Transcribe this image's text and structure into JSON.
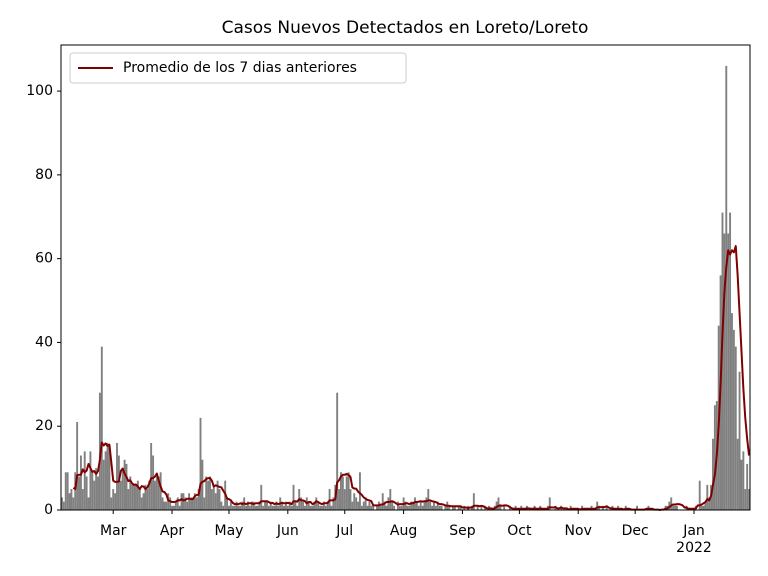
{
  "chart_data": {
    "type": "bar",
    "title": "Casos Nuevos Detectados en Loreto/Loreto",
    "xlim": [
      -0.5,
      362.5
    ],
    "xticks": [
      {
        "value": 27,
        "label": "Mar"
      },
      {
        "value": 58,
        "label": "Apr"
      },
      {
        "value": 88,
        "label": "May"
      },
      {
        "value": 119,
        "label": "Jun"
      },
      {
        "value": 149,
        "label": "Jul"
      },
      {
        "value": 180,
        "label": "Aug"
      },
      {
        "value": 211,
        "label": "Sep"
      },
      {
        "value": 241,
        "label": "Oct"
      },
      {
        "value": 272,
        "label": "Nov"
      },
      {
        "value": 302,
        "label": "Dec"
      },
      {
        "value": 333,
        "label": "Jan\n2022"
      }
    ],
    "ylim": [
      0,
      111
    ],
    "yticks": [
      0,
      20,
      40,
      60,
      80,
      100
    ],
    "legend": "upper left",
    "x": [
      0,
      1,
      2,
      3,
      4,
      5,
      6,
      7,
      8,
      9,
      10,
      11,
      12,
      13,
      14,
      15,
      16,
      17,
      18,
      19,
      20,
      21,
      22,
      23,
      24,
      25,
      26,
      27,
      28,
      29,
      30,
      31,
      32,
      33,
      34,
      35,
      36,
      37,
      38,
      39,
      40,
      41,
      42,
      43,
      44,
      45,
      46,
      47,
      48,
      49,
      50,
      51,
      52,
      53,
      54,
      55,
      56,
      57,
      58,
      59,
      60,
      61,
      62,
      63,
      64,
      65,
      66,
      67,
      68,
      69,
      70,
      71,
      72,
      73,
      74,
      75,
      76,
      77,
      78,
      79,
      80,
      81,
      82,
      83,
      84,
      85,
      86,
      87,
      88,
      89,
      90,
      91,
      92,
      93,
      94,
      95,
      96,
      97,
      98,
      99,
      100,
      101,
      102,
      103,
      104,
      105,
      106,
      107,
      108,
      109,
      110,
      111,
      112,
      113,
      114,
      115,
      116,
      117,
      118,
      119,
      120,
      121,
      122,
      123,
      124,
      125,
      126,
      127,
      128,
      129,
      130,
      131,
      132,
      133,
      134,
      135,
      136,
      137,
      138,
      139,
      140,
      141,
      142,
      143,
      144,
      145,
      146,
      147,
      148,
      149,
      150,
      151,
      152,
      153,
      154,
      155,
      156,
      157,
      158,
      159,
      160,
      161,
      162,
      163,
      164,
      165,
      166,
      167,
      168,
      169,
      170,
      171,
      172,
      173,
      174,
      175,
      176,
      177,
      178,
      179,
      180,
      181,
      182,
      183,
      184,
      185,
      186,
      187,
      188,
      189,
      190,
      191,
      192,
      193,
      194,
      195,
      196,
      197,
      198,
      199,
      200,
      201,
      202,
      203,
      204,
      205,
      206,
      207,
      208,
      209,
      210,
      211,
      212,
      213,
      214,
      215,
      216,
      217,
      218,
      219,
      220,
      221,
      222,
      223,
      224,
      225,
      226,
      227,
      228,
      229,
      230,
      231,
      232,
      233,
      234,
      235,
      236,
      237,
      238,
      239,
      240,
      241,
      242,
      243,
      244,
      245,
      246,
      247,
      248,
      249,
      250,
      251,
      252,
      253,
      254,
      255,
      256,
      257,
      258,
      259,
      260,
      261,
      262,
      263,
      264,
      265,
      266,
      267,
      268,
      269,
      270,
      271,
      272,
      273,
      274,
      275,
      276,
      277,
      278,
      279,
      280,
      281,
      282,
      283,
      284,
      285,
      286,
      287,
      288,
      289,
      290,
      291,
      292,
      293,
      294,
      295,
      296,
      297,
      298,
      299,
      300,
      301,
      302,
      303,
      304,
      305,
      306,
      307,
      308,
      309,
      310,
      311,
      312,
      313,
      314,
      315,
      316,
      317,
      318,
      319,
      320,
      321,
      322,
      323,
      324,
      325,
      326,
      327,
      328,
      329,
      330,
      331,
      332,
      333,
      334,
      335,
      336,
      337,
      338,
      339,
      340,
      341,
      342,
      343,
      344,
      345,
      346,
      347,
      348,
      349,
      350,
      351,
      352,
      353,
      354,
      355,
      356,
      357,
      358,
      359,
      360,
      361,
      362
    ],
    "bars": {
      "color": "#808080",
      "values": [
        3,
        2,
        9,
        9,
        4,
        5,
        3,
        9,
        21,
        8,
        13,
        5,
        14,
        8,
        3,
        14,
        9,
        7,
        10,
        8,
        28,
        39,
        12,
        14,
        16,
        15,
        3,
        5,
        4,
        16,
        13,
        7,
        10,
        12,
        11,
        5,
        8,
        6,
        6,
        6,
        7,
        5,
        3,
        4,
        6,
        5,
        7,
        16,
        13,
        7,
        8,
        8,
        9,
        3,
        2,
        2,
        4,
        3,
        1,
        1,
        2,
        3,
        1,
        4,
        4,
        3,
        2,
        4,
        3,
        3,
        4,
        3,
        5,
        22,
        12,
        3,
        8,
        7,
        8,
        5,
        6,
        4,
        7,
        5,
        2,
        1,
        7,
        3,
        1,
        2,
        1,
        1,
        2,
        1,
        1,
        2,
        3,
        1,
        2,
        1,
        2,
        2,
        1,
        1,
        2,
        6,
        1,
        2,
        2,
        1,
        2,
        1,
        1,
        2,
        1,
        3,
        2,
        1,
        2,
        1,
        2,
        1,
        6,
        2,
        1,
        5,
        3,
        2,
        1,
        3,
        2,
        1,
        1,
        2,
        3,
        2,
        1,
        1,
        2,
        1,
        2,
        5,
        1,
        3,
        6,
        28,
        5,
        9,
        8,
        5,
        8,
        9,
        5,
        2,
        4,
        3,
        2,
        9,
        1,
        2,
        3,
        1,
        2,
        1,
        1,
        0,
        1,
        2,
        1,
        4,
        2,
        1,
        3,
        5,
        2,
        1,
        0,
        2,
        1,
        1,
        3,
        2,
        1,
        1,
        2,
        2,
        3,
        2,
        1,
        2,
        1,
        2,
        3,
        5,
        2,
        1,
        2,
        1,
        2,
        1,
        1,
        0,
        1,
        2,
        1,
        0,
        1,
        1,
        0,
        1,
        1,
        0,
        1,
        0,
        1,
        0,
        1,
        4,
        0,
        1,
        0,
        1,
        0,
        1,
        0,
        1,
        0,
        0,
        1,
        2,
        3,
        1,
        0,
        1,
        0,
        0,
        1,
        0,
        0,
        1,
        0,
        0,
        1,
        0,
        0,
        1,
        0,
        0,
        0,
        1,
        0,
        0,
        1,
        0,
        0,
        0,
        1,
        3,
        0,
        0,
        1,
        0,
        0,
        1,
        0,
        0,
        0,
        0,
        1,
        0,
        0,
        0,
        0,
        0,
        1,
        0,
        0,
        0,
        0,
        1,
        0,
        0,
        2,
        1,
        0,
        1,
        0,
        1,
        0,
        0,
        1,
        0,
        0,
        1,
        0,
        0,
        0,
        1,
        0,
        0,
        0,
        0,
        0,
        1,
        0,
        0,
        0,
        0,
        0,
        1,
        0,
        0,
        0,
        0,
        0,
        0,
        0,
        0,
        1,
        1,
        2,
        3,
        1,
        1,
        1,
        0,
        0,
        0,
        0,
        1,
        0,
        0,
        0,
        0,
        1,
        0,
        7,
        1,
        1,
        2,
        6,
        3,
        6,
        17,
        25,
        26,
        44,
        56,
        71,
        66,
        106,
        66,
        71,
        47,
        43,
        39,
        17,
        33,
        12,
        14,
        5,
        11,
        5
      ]
    },
    "line": {
      "name": "Promedio de los 7 dias anteriores",
      "color": "#800000",
      "values": [
        null,
        null,
        null,
        null,
        null,
        null,
        5.3,
        5.0,
        8.3,
        8.4,
        8.4,
        9.7,
        9.0,
        9.4,
        11.0,
        10.0,
        9.1,
        9.3,
        8.6,
        9.3,
        12.0,
        16.1,
        15.4,
        15.9,
        15.3,
        15.6,
        11.4,
        7.0,
        6.7,
        6.7,
        6.8,
        9.3,
        9.9,
        8.7,
        7.9,
        6.9,
        7.1,
        6.3,
        6.0,
        6.1,
        5.6,
        5.0,
        5.7,
        5.6,
        5.0,
        5.4,
        6.3,
        7.6,
        7.6,
        8.0,
        8.7,
        7.0,
        5.6,
        4.4,
        4.3,
        3.7,
        2.3,
        2.1,
        1.9,
        1.9,
        2.0,
        2.3,
        2.3,
        2.6,
        2.3,
        2.4,
        2.7,
        2.7,
        2.6,
        2.6,
        3.3,
        3.6,
        3.6,
        6.3,
        6.7,
        6.9,
        7.4,
        7.6,
        7.6,
        7.0,
        5.6,
        5.9,
        5.7,
        5.5,
        5.4,
        4.6,
        3.9,
        2.7,
        2.6,
        2.3,
        1.7,
        1.4,
        1.4,
        1.4,
        1.6,
        1.4,
        1.6,
        1.4,
        1.6,
        1.6,
        1.6,
        1.4,
        1.6,
        1.6,
        1.6,
        2.1,
        2.1,
        2.1,
        2.1,
        1.9,
        1.6,
        1.7,
        1.4,
        1.6,
        1.4,
        1.6,
        1.7,
        1.6,
        1.6,
        1.7,
        1.6,
        1.4,
        2.1,
        2.1,
        2.0,
        2.6,
        2.3,
        2.3,
        2.1,
        1.6,
        1.9,
        1.9,
        1.4,
        1.6,
        2.1,
        1.9,
        1.6,
        1.4,
        1.6,
        1.6,
        1.7,
        2.3,
        2.3,
        2.3,
        2.6,
        6.6,
        7.1,
        8.0,
        8.4,
        8.4,
        8.6,
        8.4,
        7.9,
        5.4,
        5.1,
        5.1,
        4.4,
        4.0,
        3.6,
        3.0,
        2.7,
        2.4,
        2.3,
        2.1,
        1.1,
        1.1,
        1.1,
        1.1,
        1.3,
        1.3,
        1.6,
        1.9,
        1.9,
        2.0,
        2.1,
        1.9,
        1.6,
        1.3,
        1.4,
        1.4,
        1.4,
        1.6,
        1.6,
        1.4,
        1.6,
        1.6,
        1.9,
        1.9,
        2.0,
        2.1,
        2.0,
        2.1,
        2.1,
        2.3,
        2.3,
        2.1,
        2.0,
        1.9,
        1.6,
        1.4,
        1.4,
        1.3,
        1.1,
        1.0,
        1.0,
        0.9,
        0.9,
        0.9,
        0.9,
        0.9,
        0.9,
        0.6,
        0.6,
        0.6,
        0.4,
        0.6,
        0.6,
        1.0,
        1.0,
        1.0,
        0.9,
        1.0,
        0.9,
        0.6,
        0.4,
        0.4,
        0.4,
        0.3,
        0.4,
        0.7,
        1.0,
        1.1,
        1.0,
        1.1,
        1.1,
        1.0,
        0.7,
        0.4,
        0.3,
        0.3,
        0.3,
        0.3,
        0.3,
        0.3,
        0.3,
        0.4,
        0.4,
        0.3,
        0.3,
        0.4,
        0.3,
        0.3,
        0.4,
        0.3,
        0.3,
        0.3,
        0.3,
        0.7,
        0.6,
        0.6,
        0.7,
        0.4,
        0.4,
        0.6,
        0.4,
        0.4,
        0.4,
        0.1,
        0.3,
        0.3,
        0.3,
        0.3,
        0.3,
        0.1,
        0.3,
        0.3,
        0.3,
        0.3,
        0.3,
        0.3,
        0.3,
        0.3,
        0.6,
        0.7,
        0.7,
        0.7,
        0.7,
        0.9,
        0.6,
        0.4,
        0.4,
        0.3,
        0.3,
        0.3,
        0.3,
        0.3,
        0.1,
        0.3,
        0.3,
        0.3,
        0.1,
        0.1,
        0.1,
        0.1,
        0.1,
        0.1,
        0.1,
        0.1,
        0.3,
        0.3,
        0.3,
        0.3,
        0.1,
        0.1,
        0.1,
        0.0,
        0.1,
        0.1,
        0.3,
        0.4,
        0.7,
        1.1,
        1.3,
        1.3,
        1.4,
        1.4,
        1.3,
        1.1,
        0.6,
        0.6,
        0.3,
        0.3,
        0.3,
        0.3,
        0.4,
        1.1,
        1.1,
        1.3,
        1.6,
        1.9,
        2.6,
        2.3,
        3.4,
        6.0,
        8.4,
        13.0,
        20.0,
        30.0,
        42.0,
        52.0,
        58.0,
        62.0,
        61.0,
        62.0,
        61.5,
        63.0,
        56.0,
        47.0,
        38.0,
        29.0,
        22.0,
        17.0,
        13.0
      ]
    }
  }
}
